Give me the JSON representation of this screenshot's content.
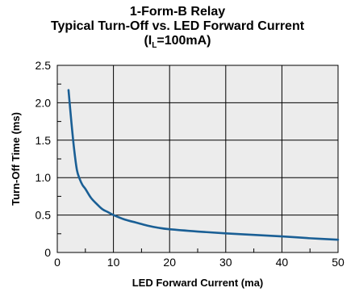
{
  "chart_data": {
    "type": "line",
    "title": "1-Form-B Relay",
    "subtitle": "Typical Turn-Off vs. LED Forward Current",
    "condition": {
      "prefix": "(I",
      "sub": "L",
      "suffix": "=100mA)"
    },
    "xlabel": "LED Forward Current (ma)",
    "ylabel": "Turn-Off Time (ms)",
    "xlim": [
      0,
      50
    ],
    "ylim": [
      0,
      2.5
    ],
    "xticks": [
      "0",
      "10",
      "20",
      "30",
      "40",
      "50"
    ],
    "yticks": [
      "0",
      "0.5",
      "1.0",
      "1.5",
      "2.0",
      "2.5"
    ],
    "grid": true,
    "colors": {
      "line": "#1a5f95",
      "plot_bg": "#ececec",
      "grid": "#000000"
    },
    "series": [
      {
        "x": [
          2,
          2.5,
          3,
          3.5,
          4,
          4.5,
          5,
          6,
          7,
          8,
          9,
          10,
          12,
          14,
          16,
          18,
          20,
          25,
          30,
          35,
          40,
          45,
          50
        ],
        "values": [
          2.17,
          1.75,
          1.38,
          1.1,
          0.98,
          0.9,
          0.85,
          0.73,
          0.65,
          0.58,
          0.54,
          0.5,
          0.44,
          0.4,
          0.36,
          0.33,
          0.31,
          0.28,
          0.255,
          0.235,
          0.215,
          0.19,
          0.17
        ]
      }
    ]
  }
}
